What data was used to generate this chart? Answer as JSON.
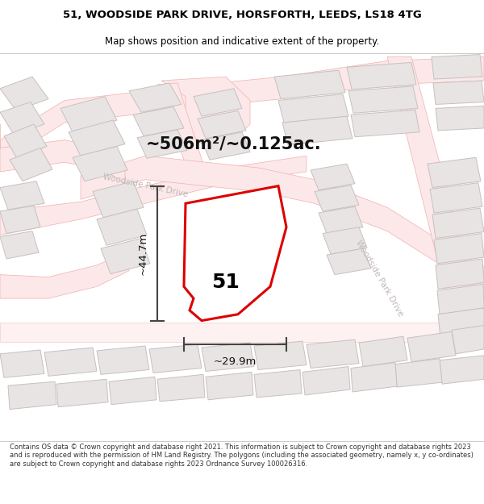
{
  "title": "51, WOODSIDE PARK DRIVE, HORSFORTH, LEEDS, LS18 4TG",
  "subtitle": "Map shows position and indicative extent of the property.",
  "area_label": "~506m²/~0.125ac.",
  "width_label": "~29.9m",
  "height_label": "~44.7m",
  "number_label": "51",
  "footer": "Contains OS data © Crown copyright and database right 2021. This information is subject to Crown copyright and database rights 2023 and is reproduced with the permission of HM Land Registry. The polygons (including the associated geometry, namely x, y co-ordinates) are subject to Crown copyright and database rights 2023 Ordnance Survey 100026316.",
  "bg_color": "#ffffff",
  "map_bg": "#f8f8f8",
  "road_edge_color": "#f0b0b0",
  "road_fill_color": "#fce8e8",
  "building_edge_color": "#c8c0c0",
  "building_fill_color": "#e8e4e4",
  "highlight_color": "#dd0000",
  "highlight_fill": "#ffffff",
  "dim_color": "#444444",
  "title_color": "#000000",
  "road_label_color": "#c0b8b8",
  "number_color": "#000000",
  "footer_color": "#333333"
}
